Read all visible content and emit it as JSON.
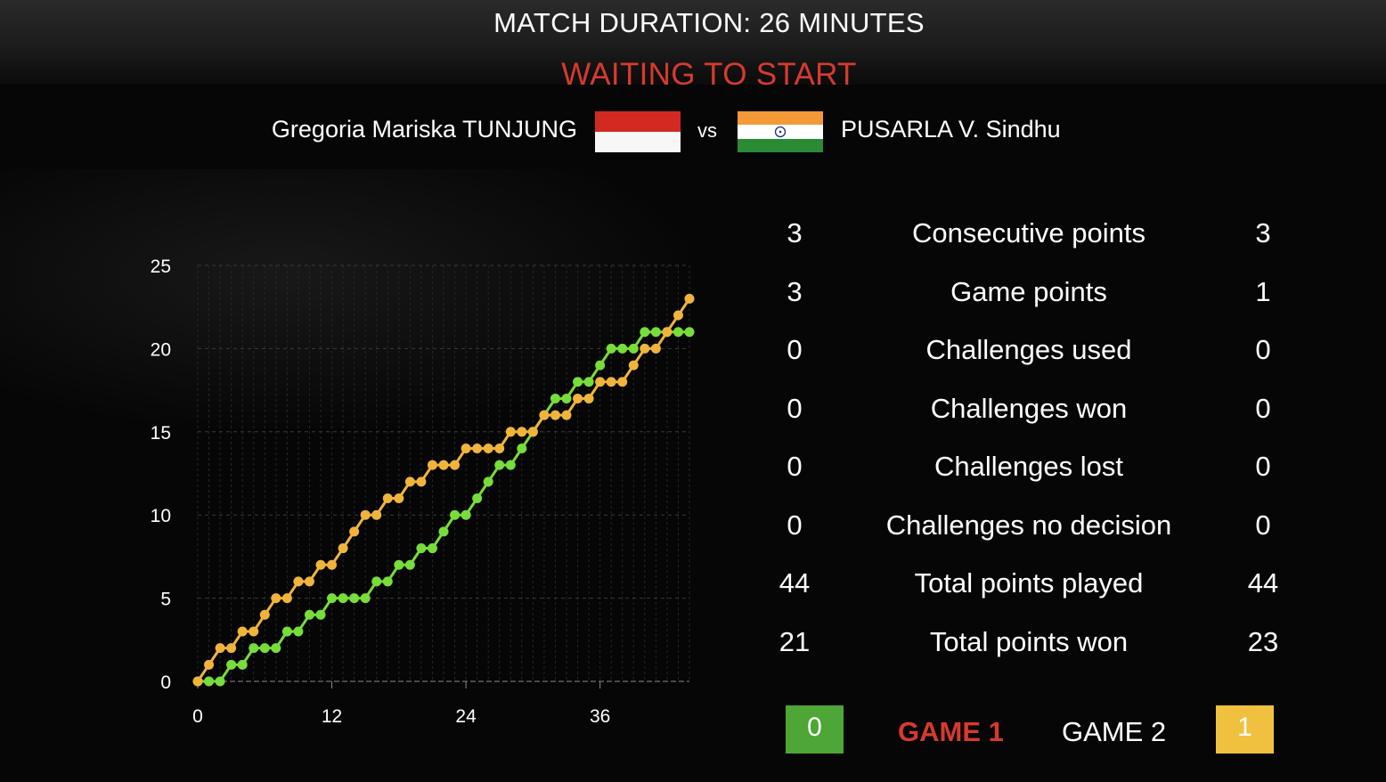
{
  "header": {
    "title": "MATCH DURATION: 26 MINUTES",
    "status": "WAITING TO START"
  },
  "players": {
    "left": {
      "name": "Gregoria Mariska TUNJUNG",
      "flag": "indonesia-flag"
    },
    "vs": "vs",
    "right": {
      "name": "PUSARLA V. Sindhu",
      "flag": "india-flag"
    }
  },
  "colors": {
    "left_series": "#77dd3a",
    "right_series": "#f0b43c",
    "status": "#d63a2f",
    "game_active": "#d63a2f",
    "box_left": "#4da635",
    "box_right": "#f0c13e"
  },
  "stats": [
    {
      "left": "3",
      "label": "Consecutive points",
      "right": "3"
    },
    {
      "left": "3",
      "label": "Game points",
      "right": "1"
    },
    {
      "left": "0",
      "label": "Challenges used",
      "right": "0"
    },
    {
      "left": "0",
      "label": "Challenges won",
      "right": "0"
    },
    {
      "left": "0",
      "label": "Challenges lost",
      "right": "0"
    },
    {
      "left": "0",
      "label": "Challenges no decision",
      "right": "0"
    },
    {
      "left": "44",
      "label": "Total points played",
      "right": "44"
    },
    {
      "left": "21",
      "label": "Total points won",
      "right": "23"
    }
  ],
  "games": {
    "left_score": "0",
    "game1": "GAME 1",
    "game2": "GAME 2",
    "right_score": "1"
  },
  "chart_data": {
    "type": "line",
    "xlabel": "",
    "ylabel": "",
    "xlim": [
      0,
      44
    ],
    "ylim": [
      0,
      25
    ],
    "x_ticks": [
      0,
      12,
      24,
      36
    ],
    "y_ticks": [
      0,
      5,
      10,
      15,
      20,
      25
    ],
    "grid": true,
    "x": [
      0,
      1,
      2,
      3,
      4,
      5,
      6,
      7,
      8,
      9,
      10,
      11,
      12,
      13,
      14,
      15,
      16,
      17,
      18,
      19,
      20,
      21,
      22,
      23,
      24,
      25,
      26,
      27,
      28,
      29,
      30,
      31,
      32,
      33,
      34,
      35,
      36,
      37,
      38,
      39,
      40,
      41,
      42,
      43,
      44
    ],
    "series": [
      {
        "color": "#77dd3a",
        "values": [
          0,
          0,
          0,
          1,
          1,
          2,
          2,
          2,
          3,
          3,
          4,
          4,
          5,
          5,
          5,
          5,
          6,
          6,
          7,
          7,
          8,
          8,
          9,
          10,
          10,
          11,
          12,
          13,
          13,
          14,
          15,
          16,
          17,
          17,
          18,
          18,
          19,
          20,
          20,
          20,
          21,
          21,
          21,
          21,
          21
        ]
      },
      {
        "color": "#f0b43c",
        "values": [
          0,
          1,
          2,
          2,
          3,
          3,
          4,
          5,
          5,
          6,
          6,
          7,
          7,
          8,
          9,
          10,
          10,
          11,
          11,
          12,
          12,
          13,
          13,
          13,
          14,
          14,
          14,
          14,
          15,
          15,
          15,
          16,
          16,
          16,
          17,
          17,
          18,
          18,
          18,
          19,
          20,
          20,
          21,
          22,
          23
        ]
      }
    ]
  }
}
